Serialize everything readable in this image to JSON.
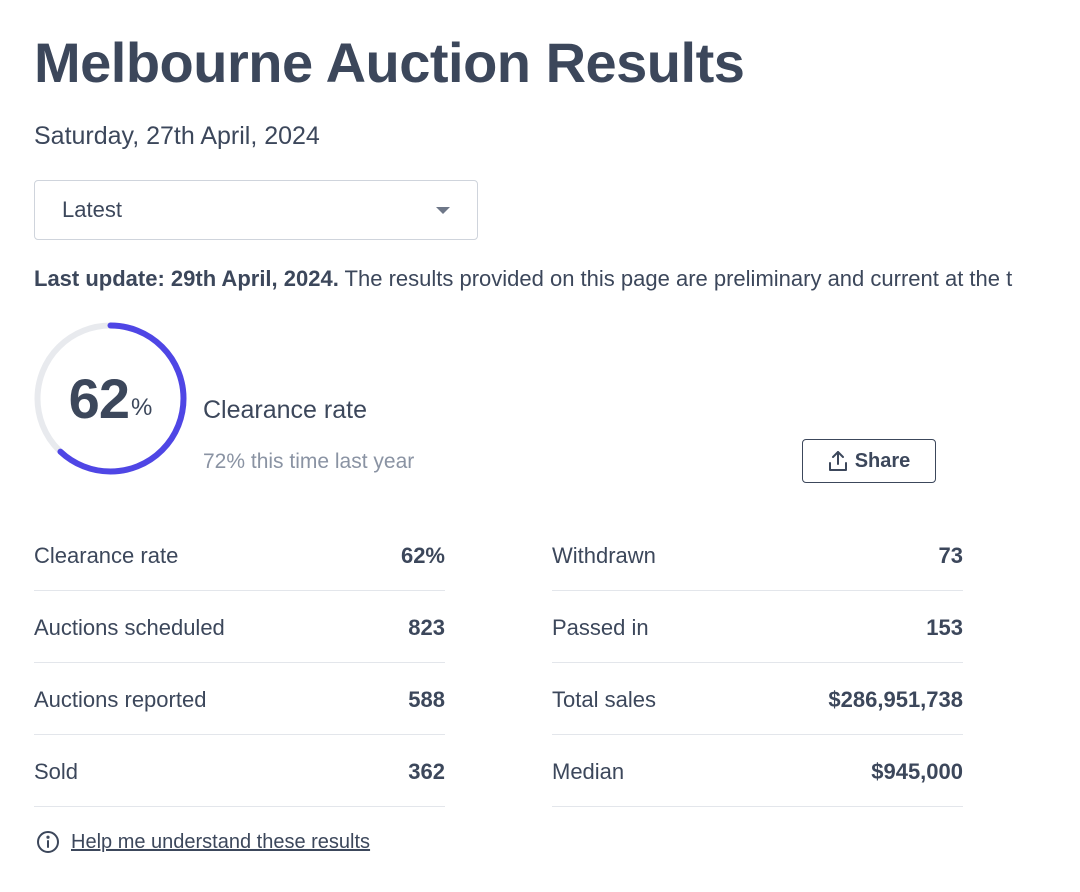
{
  "page": {
    "title": "Melbourne Auction Results",
    "date": "Saturday, 27th April, 2024"
  },
  "filter": {
    "selected": "Latest",
    "icon": "chevron-down-icon"
  },
  "update": {
    "label": "Last update: 29th April, 2024.",
    "text": " The results provided on this page are preliminary and current at the t"
  },
  "clearance": {
    "percent": 62,
    "percent_number": "62",
    "percent_sign": "%",
    "label": "Clearance rate",
    "last_year": "72% this time last year",
    "ring_color": "#4f46e5",
    "track_color": "#e8eaee"
  },
  "share": {
    "label": "Share",
    "icon": "share-upload-icon"
  },
  "stats": {
    "left": [
      {
        "label": "Clearance rate",
        "value": "62%"
      },
      {
        "label": "Auctions scheduled",
        "value": "823"
      },
      {
        "label": "Auctions reported",
        "value": "588"
      },
      {
        "label": "Sold",
        "value": "362"
      }
    ],
    "right": [
      {
        "label": "Withdrawn",
        "value": "73"
      },
      {
        "label": "Passed in",
        "value": "153"
      },
      {
        "label": "Total sales",
        "value": "$286,951,738"
      },
      {
        "label": "Median",
        "value": "$945,000"
      }
    ]
  },
  "help": {
    "link": "Help me understand these results",
    "icon": "info-icon"
  }
}
